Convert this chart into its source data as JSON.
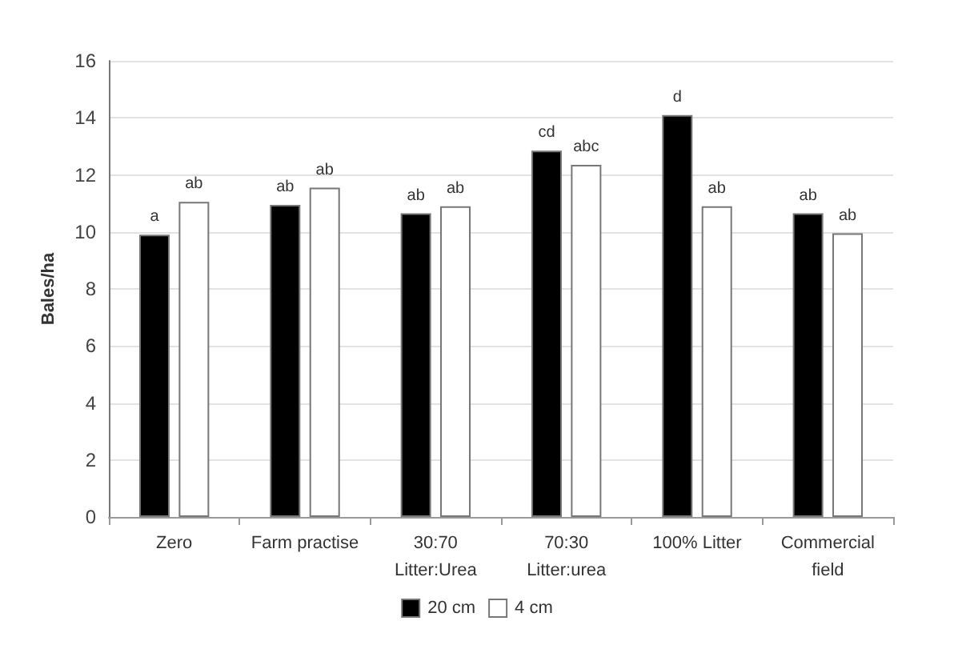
{
  "chart_data": {
    "type": "bar",
    "ylabel": "Bales/ha",
    "categories": [
      "Zero",
      "Farm practise",
      "30:70\nLitter:Urea",
      "70:30\nLitter:urea",
      "100% Litter",
      "Commercial\nfield"
    ],
    "series": [
      {
        "name": "20 cm",
        "color": "#000000",
        "values": [
          9.9,
          10.95,
          10.65,
          12.85,
          14.1,
          10.65
        ],
        "value_labels": [
          "a",
          "ab",
          "ab",
          "cd",
          "d",
          "ab"
        ]
      },
      {
        "name": "4 cm",
        "color": "#ffffff",
        "values": [
          11.05,
          11.55,
          10.9,
          12.35,
          10.9,
          9.95
        ],
        "value_labels": [
          "ab",
          "ab",
          "ab",
          "abc",
          "ab",
          "ab"
        ]
      }
    ],
    "ylim": [
      0,
      16
    ],
    "yticks": [
      0,
      2,
      4,
      6,
      8,
      10,
      12,
      14,
      16
    ],
    "grid": "y",
    "legend": "bottom"
  }
}
